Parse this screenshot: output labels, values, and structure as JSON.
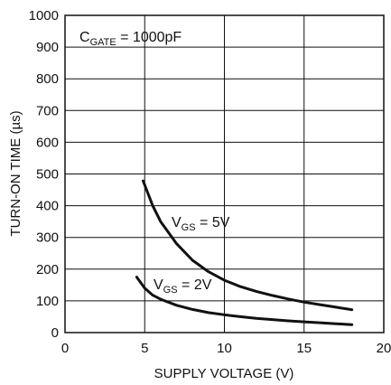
{
  "chart_data": {
    "type": "line",
    "title": "",
    "xlabel": "SUPPLY VOLTAGE (V)",
    "ylabel": "TURN-ON TIME (µs)",
    "xlim": [
      0,
      20
    ],
    "ylim": [
      0,
      1000
    ],
    "x_ticks": [
      0,
      5,
      10,
      15,
      20
    ],
    "y_ticks": [
      0,
      100,
      200,
      300,
      400,
      500,
      600,
      700,
      800,
      900,
      1000
    ],
    "grid": true,
    "annotation": {
      "main": "C",
      "sub": "GATE",
      "rest": " = 1000pF"
    },
    "series": [
      {
        "label_main": "V",
        "label_sub": "GS",
        "label_rest": " = 5V",
        "x": [
          4.9,
          5.5,
          6.0,
          7.0,
          8.0,
          9.0,
          10.0,
          11.0,
          12.0,
          13.0,
          14.0,
          15.0,
          16.0,
          17.0,
          18.0
        ],
        "y": [
          478,
          400,
          350,
          280,
          228,
          192,
          165,
          145,
          130,
          117,
          106,
          96,
          88,
          80,
          72
        ]
      },
      {
        "label_main": "V",
        "label_sub": "GS",
        "label_rest": " = 2V",
        "x": [
          4.5,
          5.0,
          5.5,
          6.0,
          7.0,
          8.0,
          9.0,
          10.0,
          11.0,
          12.0,
          13.0,
          14.0,
          15.0,
          16.0,
          17.0,
          18.0
        ],
        "y": [
          175,
          140,
          118,
          105,
          86,
          73,
          63,
          56,
          50,
          45,
          41,
          37,
          34,
          31,
          28,
          25
        ]
      }
    ]
  }
}
